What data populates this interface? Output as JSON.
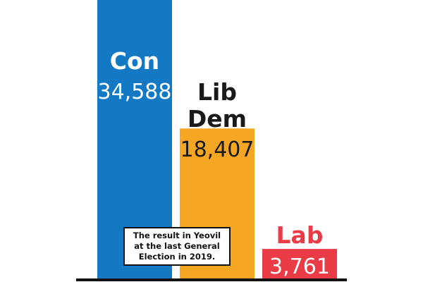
{
  "chart_data": {
    "type": "bar",
    "categories": [
      "Con",
      "Lib Dem",
      "Lab"
    ],
    "category_lines": [
      [
        "Con"
      ],
      [
        "Lib",
        "Dem"
      ],
      [
        "Lab"
      ]
    ],
    "values": [
      34588,
      18407,
      3761
    ],
    "value_labels": [
      "34,588",
      "18,407",
      "3,761"
    ],
    "colors": [
      "#1479c4",
      "#f5a623",
      "#ea3b46"
    ],
    "category_label_colors": [
      "#ffffff",
      "#1a1a1a",
      "#ea3b46"
    ],
    "value_label_colors": [
      "#ffffff",
      "#1a1a1a",
      "#ffffff"
    ],
    "ylim": [
      0,
      36000
    ],
    "grid": false,
    "legend": "none",
    "annotation": "The result in Yeovil at the last General Election in 2019."
  }
}
